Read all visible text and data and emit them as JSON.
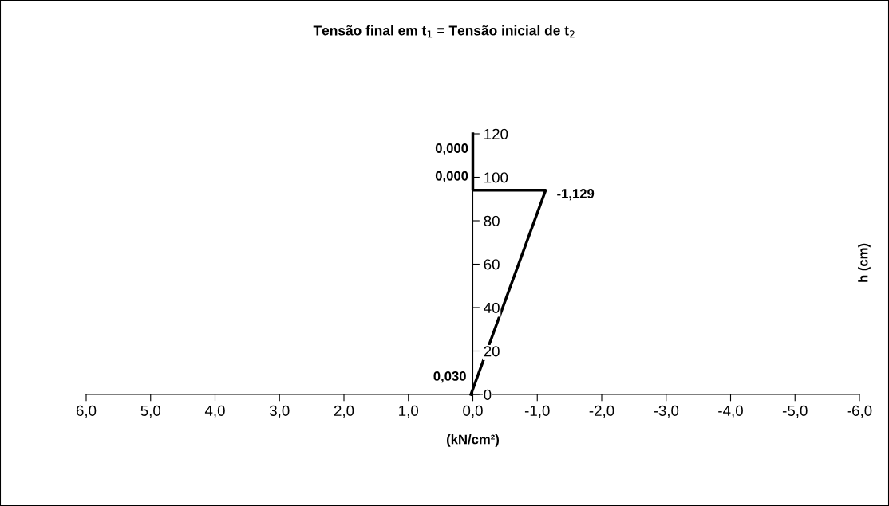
{
  "chart_data": {
    "type": "line",
    "title": "Tensão final em t$_{1}$ = Tensão inicial de t$_{2}$",
    "xlabel": "(kN/cm²)",
    "ylabel": "h (cm)",
    "series": [
      {
        "color": "#000000",
        "x": [
          0.03,
          -1.129,
          0,
          0
        ],
        "values": [
          0,
          94,
          94,
          120
        ]
      }
    ],
    "annotations": [
      {
        "text": "0,030",
        "x": 0.03,
        "y": 0
      },
      {
        "text": "-1,129",
        "x": -1.129,
        "y": 94
      },
      {
        "text": "0,000",
        "x": 0,
        "y": 94
      },
      {
        "text": "0,000",
        "x": 0,
        "y": 120
      }
    ],
    "xlim": [
      6,
      -6
    ],
    "xticks": [
      {
        "value": 6,
        "label": "6,0"
      },
      {
        "value": 5,
        "label": "5,0"
      },
      {
        "value": 4,
        "label": "4,0"
      },
      {
        "value": 3,
        "label": "3,0"
      },
      {
        "value": 2,
        "label": "2,0"
      },
      {
        "value": 1,
        "label": "1,0"
      },
      {
        "value": 0,
        "label": "0,0"
      },
      {
        "value": -1,
        "label": "-1,0"
      },
      {
        "value": -2,
        "label": "-2,0"
      },
      {
        "value": -3,
        "label": "-3,0"
      },
      {
        "value": -4,
        "label": "-4,0"
      },
      {
        "value": -5,
        "label": "-5,0"
      },
      {
        "value": -6,
        "label": "-6,0"
      }
    ],
    "ylim": [
      0,
      120
    ],
    "yticks": [
      0,
      20,
      40,
      60,
      80,
      100,
      120
    ],
    "grid": false,
    "legend": false,
    "marker": "none",
    "line_style": "solid"
  }
}
